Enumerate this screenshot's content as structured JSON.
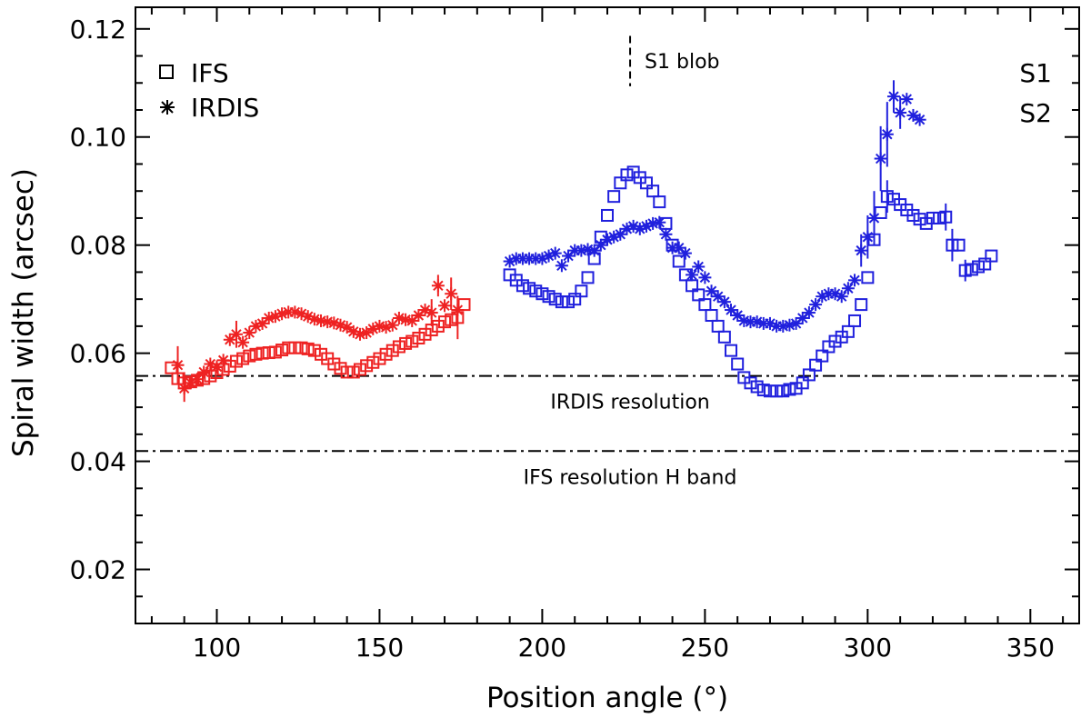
{
  "chart_data": {
    "type": "scatter",
    "title": "",
    "xlabel": "Position angle (°)",
    "ylabel": "Spiral width (arcsec)",
    "xlim": [
      75,
      365
    ],
    "ylim": [
      0.01,
      0.124
    ],
    "xticks": [
      100,
      150,
      200,
      250,
      300,
      350
    ],
    "xtick_labels": [
      "100",
      "150",
      "200",
      "250",
      "300",
      "350"
    ],
    "yticks": [
      0.02,
      0.04,
      0.06,
      0.08,
      0.1,
      0.12
    ],
    "ytick_labels": [
      "0.02",
      "0.04",
      "0.06",
      "0.08",
      "0.10",
      "0.12"
    ],
    "grid": false,
    "colors": {
      "S1": "#2020dd",
      "S2": "#ee2222",
      "axis": "#000000"
    },
    "legend": {
      "markers": [
        {
          "symbol": "square",
          "label": "IFS"
        },
        {
          "symbol": "asterisk",
          "label": "IRDIS"
        }
      ],
      "spirals": [
        {
          "label": "S1",
          "color": "#2020dd"
        },
        {
          "label": "S2",
          "color": "#ee2222"
        }
      ]
    },
    "hlines": [
      {
        "y": 0.0558,
        "style": "dash-dot",
        "label": "IRDIS resolution",
        "label_x": 227
      },
      {
        "y": 0.0419,
        "style": "dash-dot",
        "label": "IFS resolution H band",
        "label_x": 227
      }
    ],
    "vmarker": {
      "x": 227,
      "y0": 0.1094,
      "y1": 0.1187,
      "label": "S1 blob"
    },
    "series": [
      {
        "name": "S2 IFS",
        "spiral": "S2",
        "marker": "square",
        "color": "#ee2222",
        "x": [
          86,
          88,
          90,
          92,
          94,
          96,
          98,
          100,
          102,
          104,
          106,
          108,
          110,
          112,
          114,
          116,
          118,
          120,
          122,
          124,
          126,
          128,
          130,
          132,
          134,
          136,
          138,
          140,
          142,
          144,
          146,
          148,
          150,
          152,
          154,
          156,
          158,
          160,
          162,
          164,
          166,
          168,
          170,
          172,
          174,
          176
        ],
        "y": [
          0.0573,
          0.0553,
          0.0545,
          0.0547,
          0.055,
          0.0553,
          0.0558,
          0.0564,
          0.057,
          0.0576,
          0.0585,
          0.059,
          0.0595,
          0.0598,
          0.06,
          0.0601,
          0.0602,
          0.0606,
          0.061,
          0.061,
          0.061,
          0.0608,
          0.0605,
          0.0598,
          0.059,
          0.058,
          0.0572,
          0.0565,
          0.0565,
          0.057,
          0.0577,
          0.0583,
          0.059,
          0.0598,
          0.0605,
          0.0612,
          0.0618,
          0.0622,
          0.0628,
          0.0635,
          0.0643,
          0.065,
          0.0658,
          0.0662,
          0.0666,
          0.069
        ],
        "err": [
          0,
          0,
          0.002,
          0,
          0,
          0,
          0,
          0,
          0,
          0,
          0,
          0,
          0,
          0,
          0,
          0,
          0,
          0,
          0,
          0,
          0,
          0,
          0,
          0,
          0,
          0,
          0,
          0,
          0,
          0,
          0,
          0,
          0,
          0,
          0,
          0,
          0,
          0,
          0,
          0,
          0,
          0,
          0,
          0,
          0.004,
          0
        ]
      },
      {
        "name": "S2 IRDIS",
        "spiral": "S2",
        "marker": "asterisk",
        "color": "#ee2222",
        "x": [
          88,
          90,
          92,
          94,
          96,
          98,
          100,
          102,
          104,
          106,
          108,
          110,
          112,
          114,
          116,
          118,
          120,
          122,
          124,
          126,
          128,
          130,
          132,
          134,
          136,
          138,
          140,
          142,
          144,
          146,
          148,
          150,
          152,
          154,
          156,
          158,
          160,
          162,
          164,
          166,
          168,
          170,
          172,
          174
        ],
        "y": [
          0.0578,
          0.0535,
          0.0545,
          0.0552,
          0.0565,
          0.058,
          0.0575,
          0.0587,
          0.0625,
          0.0635,
          0.062,
          0.0638,
          0.065,
          0.0655,
          0.0665,
          0.0668,
          0.0673,
          0.0676,
          0.0676,
          0.0673,
          0.0668,
          0.0663,
          0.066,
          0.0658,
          0.0656,
          0.0652,
          0.0648,
          0.064,
          0.0635,
          0.0638,
          0.0645,
          0.065,
          0.0648,
          0.0652,
          0.0665,
          0.0662,
          0.066,
          0.067,
          0.068,
          0.0675,
          0.0725,
          0.0688,
          0.071,
          0.068
        ],
        "err": [
          0.0035,
          0.0025,
          0,
          0,
          0,
          0,
          0,
          0,
          0,
          0.0025,
          0,
          0,
          0,
          0,
          0,
          0,
          0,
          0,
          0,
          0,
          0,
          0,
          0,
          0,
          0,
          0,
          0,
          0,
          0,
          0,
          0,
          0,
          0,
          0,
          0,
          0,
          0,
          0,
          0,
          0.0025,
          0.002,
          0,
          0.003,
          0
        ]
      },
      {
        "name": "S1 IFS",
        "spiral": "S1",
        "marker": "square",
        "color": "#2020dd",
        "x": [
          190,
          192,
          194,
          196,
          198,
          200,
          202,
          204,
          206,
          208,
          210,
          212,
          214,
          216,
          218,
          220,
          222,
          224,
          226,
          228,
          230,
          232,
          234,
          236,
          238,
          240,
          242,
          244,
          246,
          248,
          250,
          252,
          254,
          256,
          258,
          260,
          262,
          264,
          266,
          268,
          270,
          272,
          274,
          276,
          278,
          280,
          282,
          284,
          286,
          288,
          290,
          292,
          294,
          296,
          298,
          300,
          302,
          304,
          306,
          308,
          310,
          312,
          314,
          316,
          318,
          320,
          322,
          324,
          326,
          328,
          330,
          332,
          334,
          336,
          338
        ],
        "y": [
          0.0745,
          0.0735,
          0.0725,
          0.072,
          0.0715,
          0.071,
          0.0705,
          0.07,
          0.0695,
          0.0695,
          0.07,
          0.0715,
          0.074,
          0.0775,
          0.0815,
          0.0855,
          0.089,
          0.0915,
          0.093,
          0.0935,
          0.0925,
          0.0915,
          0.09,
          0.088,
          0.084,
          0.08,
          0.077,
          0.0745,
          0.0725,
          0.0708,
          0.069,
          0.067,
          0.065,
          0.063,
          0.0605,
          0.058,
          0.0555,
          0.0545,
          0.0538,
          0.0532,
          0.053,
          0.053,
          0.053,
          0.0533,
          0.0535,
          0.0545,
          0.056,
          0.0578,
          0.0595,
          0.0612,
          0.0622,
          0.063,
          0.064,
          0.066,
          0.069,
          0.074,
          0.081,
          0.086,
          0.089,
          0.0885,
          0.0875,
          0.0865,
          0.0855,
          0.0848,
          0.084,
          0.085,
          0.085,
          0.0852,
          0.08,
          0.08,
          0.0753,
          0.0755,
          0.076,
          0.0765,
          0.078
        ],
        "err": [
          0,
          0,
          0,
          0,
          0,
          0,
          0,
          0,
          0,
          0,
          0,
          0,
          0,
          0,
          0,
          0,
          0,
          0,
          0,
          0,
          0,
          0,
          0,
          0,
          0,
          0,
          0,
          0,
          0,
          0,
          0,
          0,
          0,
          0,
          0,
          0,
          0,
          0,
          0,
          0,
          0,
          0,
          0,
          0,
          0,
          0,
          0,
          0,
          0,
          0,
          0,
          0,
          0,
          0,
          0,
          0,
          0,
          0,
          0.003,
          0,
          0,
          0,
          0,
          0,
          0,
          0,
          0,
          0.0025,
          0.003,
          0,
          0.002,
          0,
          0,
          0,
          0
        ]
      },
      {
        "name": "S1 IRDIS",
        "spiral": "S1",
        "marker": "asterisk",
        "color": "#2020dd",
        "x": [
          190,
          192,
          194,
          196,
          198,
          200,
          202,
          204,
          206,
          208,
          210,
          212,
          214,
          216,
          218,
          220,
          222,
          224,
          226,
          228,
          230,
          232,
          234,
          236,
          238,
          240,
          242,
          244,
          246,
          248,
          250,
          252,
          254,
          256,
          258,
          260,
          262,
          264,
          266,
          268,
          270,
          272,
          274,
          276,
          278,
          280,
          282,
          284,
          286,
          288,
          290,
          292,
          294,
          296,
          298,
          300,
          302,
          304,
          306,
          308,
          310,
          312,
          314,
          316
        ],
        "y": [
          0.077,
          0.0775,
          0.0775,
          0.0775,
          0.0775,
          0.0775,
          0.078,
          0.0785,
          0.0762,
          0.078,
          0.079,
          0.079,
          0.0792,
          0.079,
          0.08,
          0.081,
          0.0815,
          0.082,
          0.083,
          0.0835,
          0.083,
          0.0835,
          0.084,
          0.0842,
          0.082,
          0.0795,
          0.0795,
          0.0785,
          0.0745,
          0.076,
          0.074,
          0.0715,
          0.0705,
          0.0695,
          0.068,
          0.067,
          0.066,
          0.0658,
          0.0658,
          0.0655,
          0.0655,
          0.065,
          0.065,
          0.0652,
          0.0655,
          0.0665,
          0.0675,
          0.069,
          0.0705,
          0.071,
          0.071,
          0.0705,
          0.072,
          0.0735,
          0.079,
          0.0815,
          0.085,
          0.096,
          0.1005,
          0.1075,
          0.1045,
          0.107,
          0.104,
          0.1032
        ],
        "err": [
          0,
          0,
          0,
          0,
          0,
          0,
          0,
          0,
          0,
          0,
          0,
          0,
          0,
          0,
          0,
          0,
          0,
          0,
          0,
          0,
          0,
          0,
          0,
          0,
          0,
          0,
          0,
          0,
          0,
          0,
          0,
          0,
          0,
          0,
          0,
          0,
          0,
          0,
          0,
          0,
          0,
          0,
          0,
          0,
          0,
          0,
          0,
          0,
          0,
          0,
          0,
          0,
          0,
          0,
          0.003,
          0.004,
          0.005,
          0.006,
          0.006,
          0.003,
          0.003,
          0,
          0,
          0
        ]
      }
    ]
  }
}
